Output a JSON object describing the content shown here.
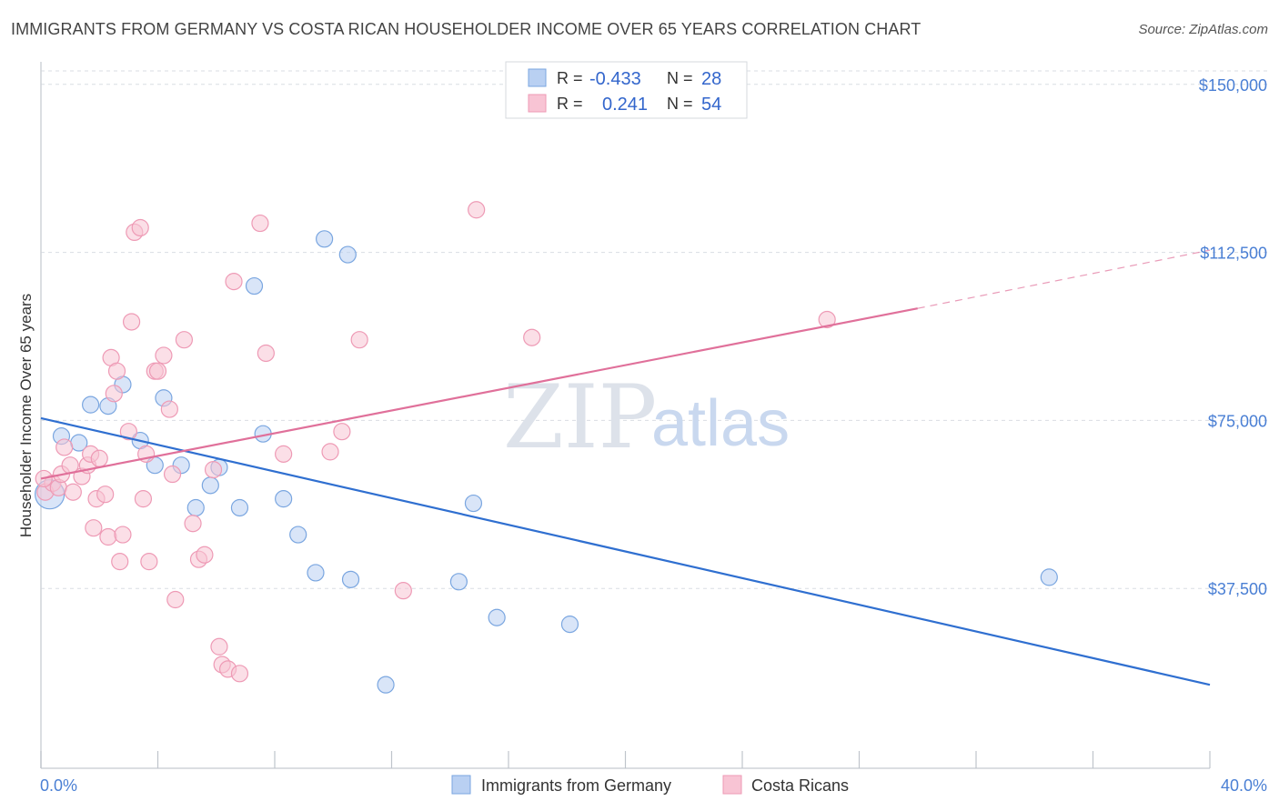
{
  "title": "IMMIGRANTS FROM GERMANY VS COSTA RICAN HOUSEHOLDER INCOME OVER 65 YEARS CORRELATION CHART",
  "source": "Source: ZipAtlas.com",
  "watermark": {
    "zip": "ZIP",
    "atlas": "atlas"
  },
  "colors": {
    "blue_fill": "#b9d0f2",
    "blue_stroke": "#7aa6e0",
    "blue_line": "#2f6fd0",
    "pink_fill": "#f8c4d4",
    "pink_stroke": "#ee9ab5",
    "pink_line": "#e0709a",
    "grid": "#d9dde3",
    "axis_text": "#4a7fd4"
  },
  "legend_box": {
    "rows": [
      {
        "r_label": "R =",
        "r_value": "-0.433",
        "n_label": "N =",
        "n_value": "28"
      },
      {
        "r_label": "R =",
        "r_value": "0.241",
        "n_label": "N =",
        "n_value": "54"
      }
    ]
  },
  "bottom_legend": [
    "Immigrants from Germany",
    "Costa Ricans"
  ],
  "chart_data": {
    "type": "scatter",
    "ylabel": "Householder Income Over 65 years",
    "xlabel": "",
    "xlim": [
      0,
      40
    ],
    "ylim": [
      0,
      153000
    ],
    "x_tick_labels": [
      "0.0%",
      "40.0%"
    ],
    "y_ticks": [
      37500,
      75000,
      112500,
      150000
    ],
    "y_tick_labels": [
      "$37,500",
      "$75,000",
      "$112,500",
      "$150,000"
    ],
    "grid": true,
    "legend_position": "top-center",
    "series": [
      {
        "name": "Immigrants from Germany",
        "color": "#7aa6e0",
        "points": [
          [
            0.3,
            58500
          ],
          [
            0.7,
            71500
          ],
          [
            1.3,
            70000
          ],
          [
            1.7,
            78500
          ],
          [
            2.3,
            78200
          ],
          [
            2.8,
            83000
          ],
          [
            3.4,
            70500
          ],
          [
            3.9,
            65000
          ],
          [
            4.2,
            80000
          ],
          [
            4.8,
            65000
          ],
          [
            5.3,
            55500
          ],
          [
            5.8,
            60500
          ],
          [
            6.1,
            64500
          ],
          [
            6.8,
            55500
          ],
          [
            7.3,
            105000
          ],
          [
            7.6,
            72000
          ],
          [
            8.3,
            57500
          ],
          [
            8.8,
            49500
          ],
          [
            9.4,
            41000
          ],
          [
            9.7,
            115500
          ],
          [
            10.5,
            112000
          ],
          [
            10.6,
            39500
          ],
          [
            11.8,
            16000
          ],
          [
            14.3,
            39000
          ],
          [
            14.8,
            56500
          ],
          [
            15.6,
            31000
          ],
          [
            18.1,
            29500
          ],
          [
            34.5,
            40000
          ]
        ],
        "trend": {
          "x": [
            0,
            40
          ],
          "y": [
            75500,
            16000
          ],
          "style": "solid"
        }
      },
      {
        "name": "Costa Ricans",
        "color": "#ee9ab5",
        "points": [
          [
            0.15,
            59000
          ],
          [
            0.4,
            61000
          ],
          [
            0.6,
            60000
          ],
          [
            0.7,
            63000
          ],
          [
            0.8,
            69000
          ],
          [
            1.0,
            65000
          ],
          [
            1.1,
            59000
          ],
          [
            1.4,
            62500
          ],
          [
            1.6,
            65000
          ],
          [
            1.7,
            67500
          ],
          [
            1.8,
            51000
          ],
          [
            1.9,
            57500
          ],
          [
            2.0,
            66500
          ],
          [
            2.2,
            58500
          ],
          [
            2.3,
            49000
          ],
          [
            2.4,
            89000
          ],
          [
            2.5,
            81000
          ],
          [
            2.6,
            86000
          ],
          [
            2.7,
            43500
          ],
          [
            2.8,
            49500
          ],
          [
            3.0,
            72500
          ],
          [
            3.1,
            97000
          ],
          [
            3.2,
            117000
          ],
          [
            3.4,
            118000
          ],
          [
            3.5,
            57500
          ],
          [
            3.6,
            67500
          ],
          [
            3.7,
            43500
          ],
          [
            3.9,
            86000
          ],
          [
            4.0,
            86000
          ],
          [
            4.2,
            89500
          ],
          [
            4.4,
            77500
          ],
          [
            4.5,
            63000
          ],
          [
            4.6,
            35000
          ],
          [
            4.9,
            93000
          ],
          [
            5.2,
            52000
          ],
          [
            5.4,
            44000
          ],
          [
            5.6,
            45000
          ],
          [
            5.9,
            64000
          ],
          [
            6.1,
            24500
          ],
          [
            6.2,
            20500
          ],
          [
            6.4,
            19500
          ],
          [
            6.6,
            106000
          ],
          [
            6.8,
            18500
          ],
          [
            7.5,
            119000
          ],
          [
            7.7,
            90000
          ],
          [
            8.3,
            67500
          ],
          [
            9.9,
            68000
          ],
          [
            10.3,
            72500
          ],
          [
            10.9,
            93000
          ],
          [
            12.4,
            37000
          ],
          [
            14.9,
            122000
          ],
          [
            16.8,
            93500
          ],
          [
            26.9,
            97500
          ],
          [
            0.1,
            62000
          ]
        ],
        "trend": {
          "x": [
            0,
            30
          ],
          "y": [
            62000,
            100000
          ],
          "style": "solid",
          "dashed_extension": {
            "x": [
              30,
              40
            ],
            "y": [
              100000,
              113000
            ]
          }
        }
      }
    ]
  }
}
